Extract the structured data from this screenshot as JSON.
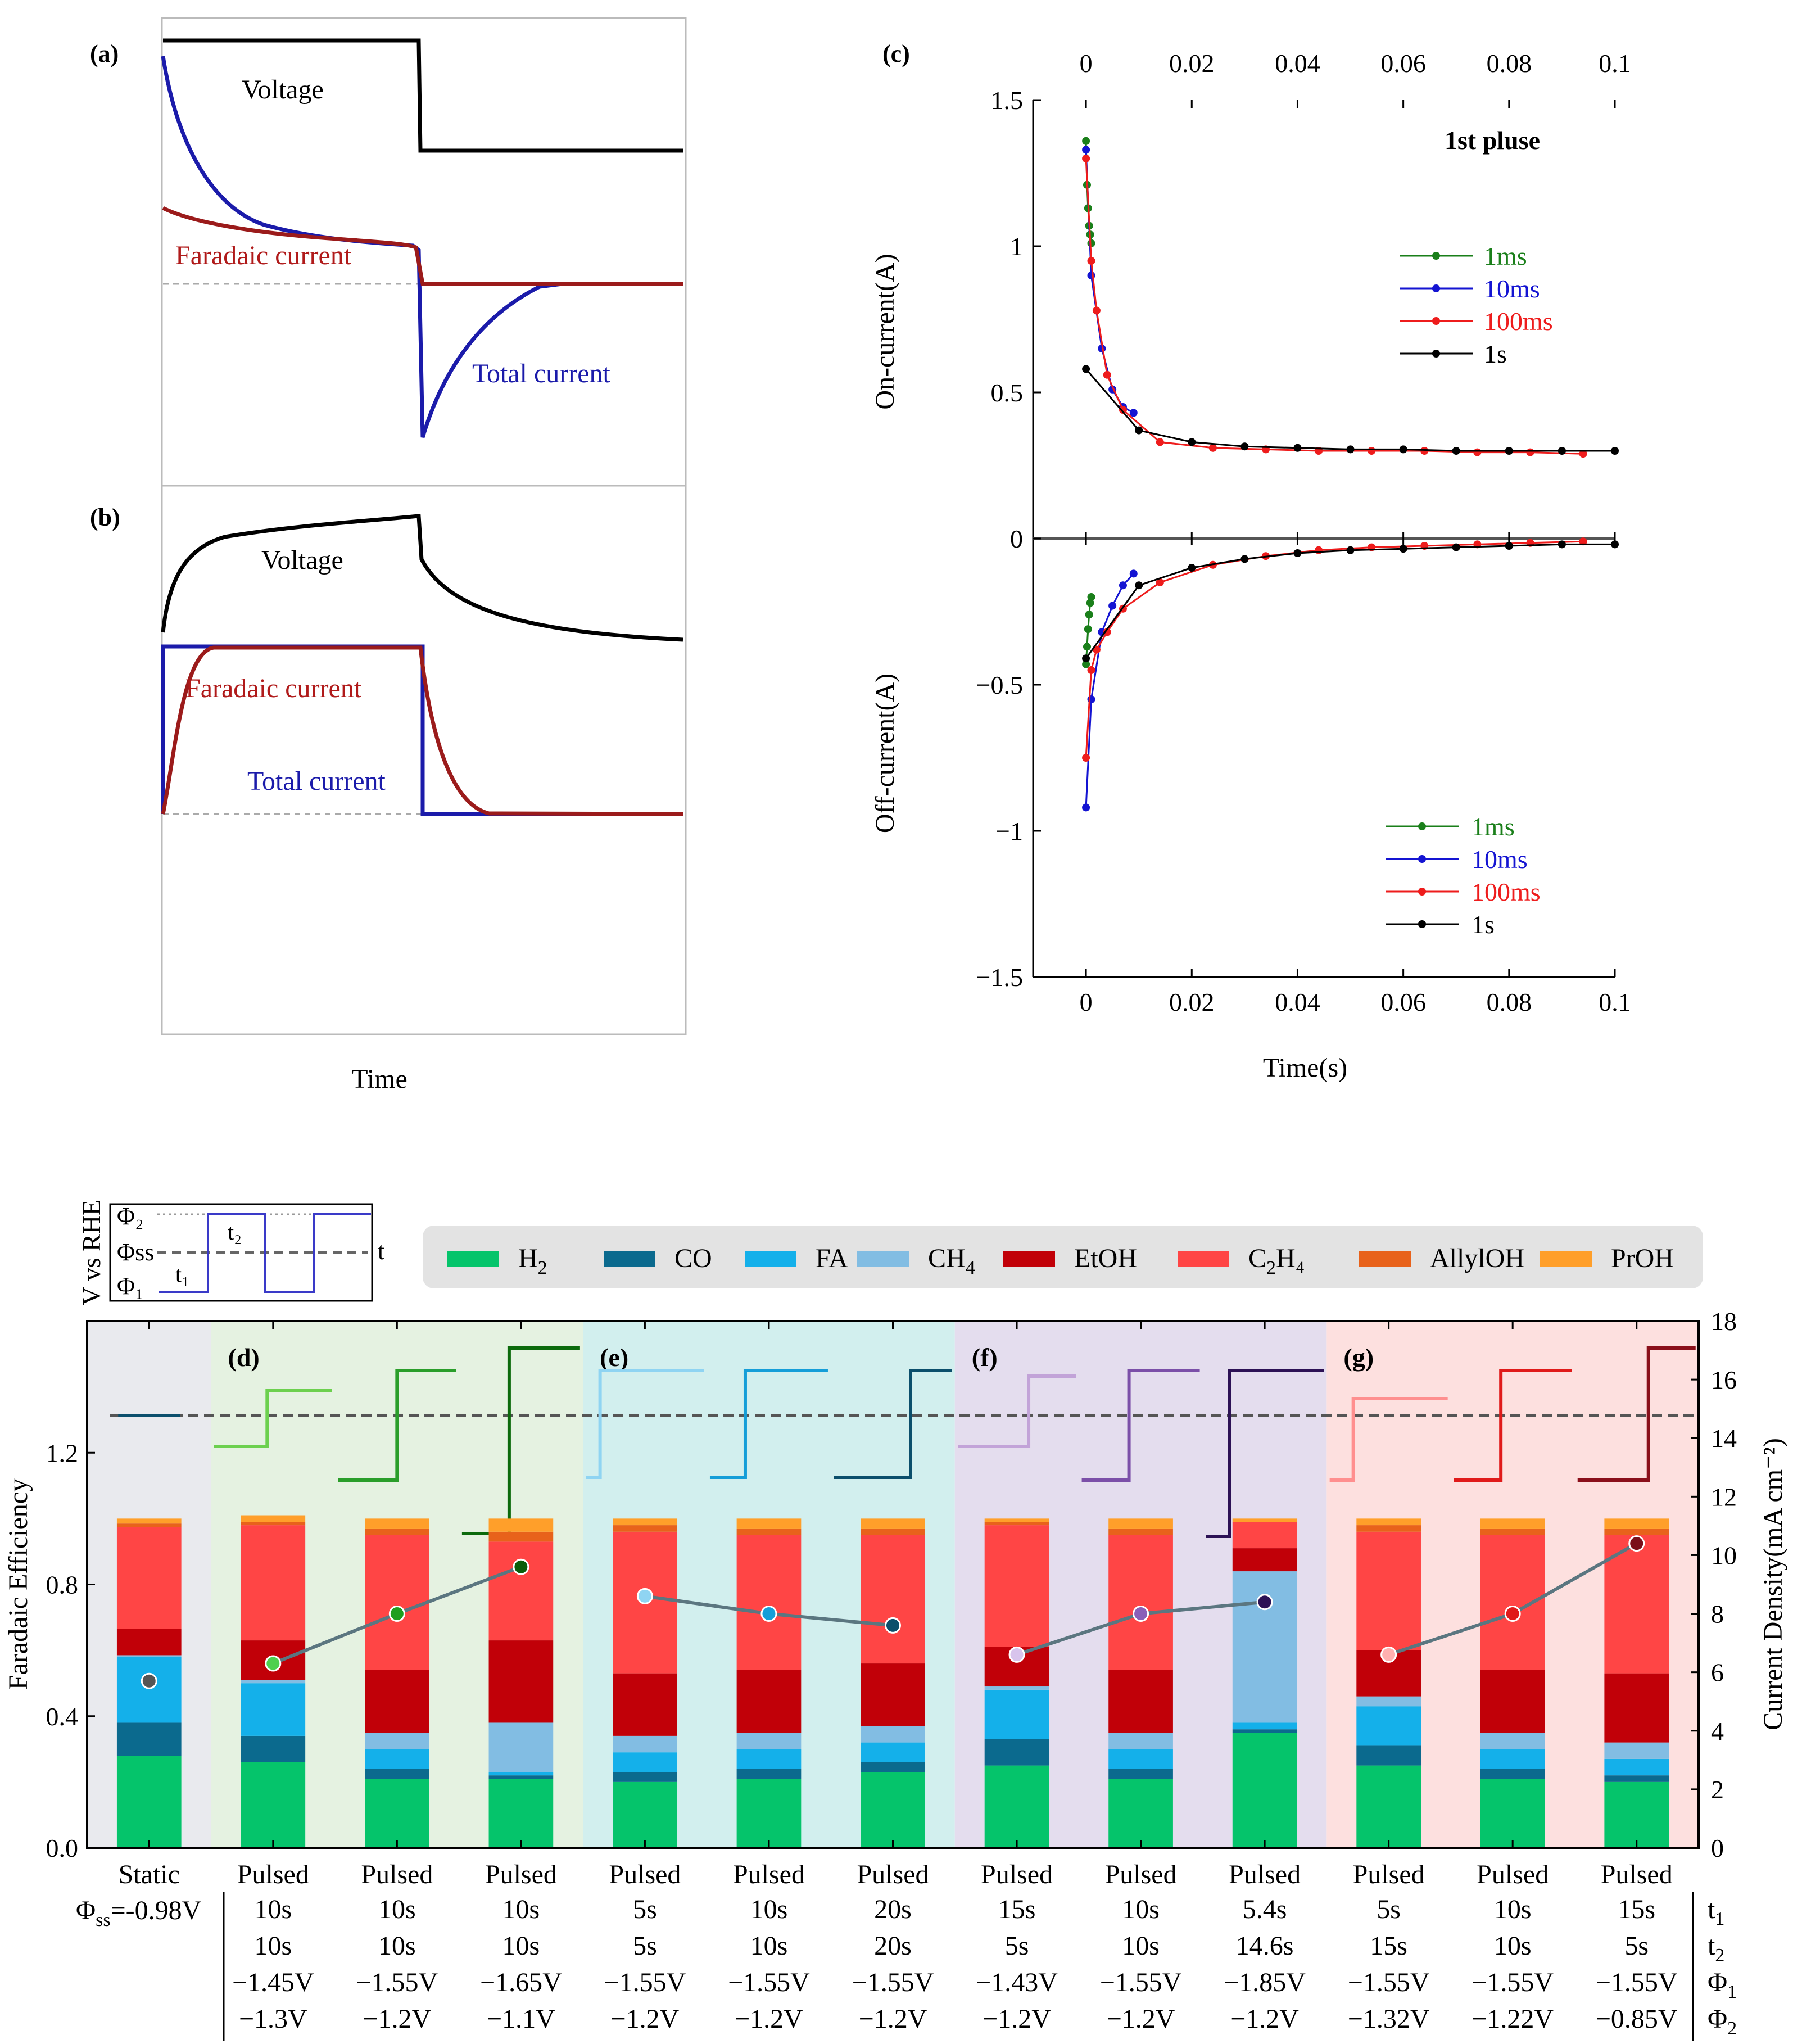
{
  "panels": {
    "a": "(a)",
    "b": "(b)",
    "c": "(c)",
    "d": "(d)",
    "e": "(e)",
    "f": "(f)",
    "g": "(g)"
  },
  "schematic": {
    "a": {
      "voltage": "Voltage",
      "faradaic": "Faradaic current",
      "total": "Total current"
    },
    "b": {
      "voltage": "Voltage",
      "faradaic": "Faradaic current",
      "total": "Total current"
    },
    "xlabel": "Time"
  },
  "colors": {
    "ms1": "#1a7f1a",
    "ms10": "#1414d2",
    "ms100": "#ee1c1c",
    "s1": "#000000",
    "voltage": "#000000",
    "faradaic": "#9b1b1b",
    "total": "#1b1baa",
    "H2": "#05c46b",
    "CO": "#0b6a8e",
    "FA": "#14b0ea",
    "CH4": "#82bde3",
    "EtOH": "#c10008",
    "C2H4": "#ff4545",
    "AllylOH": "#e8621b",
    "PrOH": "#ff9f2a",
    "group_static": "#e9eaee",
    "group_d": "#e5f2e1",
    "group_e": "#d2efee",
    "group_f": "#e4ddee",
    "group_g": "#fde0df"
  },
  "chart_data": [
    {
      "type": "line",
      "title": "1st pluse",
      "xlabel": "Time(s)",
      "ylabel_top": "On-current(A)",
      "ylabel_bottom": "Off-current(A)",
      "xlim": [
        -0.01,
        0.1
      ],
      "ylim": [
        -1.5,
        1.5
      ],
      "x_ticks": [
        "0",
        "0.02",
        "0.04",
        "0.06",
        "0.08",
        "0.1"
      ],
      "y_ticks": [
        "1.5",
        "1",
        "0.5",
        "0",
        "−0.5",
        "−1",
        "−1.5"
      ],
      "legend": [
        "1ms",
        "10ms",
        "100ms",
        "1s"
      ],
      "series_on": [
        {
          "name": "1ms",
          "x": [
            0,
            0.0002,
            0.0004,
            0.0006,
            0.0008,
            0.001
          ],
          "y": [
            1.36,
            1.21,
            1.13,
            1.07,
            1.04,
            1.01
          ]
        },
        {
          "name": "10ms",
          "x": [
            0,
            0.001,
            0.003,
            0.005,
            0.007,
            0.009
          ],
          "y": [
            1.33,
            0.9,
            0.65,
            0.51,
            0.45,
            0.43
          ]
        },
        {
          "name": "100ms",
          "x": [
            0,
            0.001,
            0.002,
            0.004,
            0.007,
            0.014,
            0.024,
            0.034,
            0.044,
            0.054,
            0.064,
            0.074,
            0.084,
            0.094
          ],
          "y": [
            1.3,
            0.95,
            0.78,
            0.56,
            0.44,
            0.33,
            0.31,
            0.305,
            0.3,
            0.3,
            0.3,
            0.295,
            0.295,
            0.29
          ]
        },
        {
          "name": "1s",
          "x": [
            0,
            0.01,
            0.02,
            0.03,
            0.04,
            0.05,
            0.06,
            0.07,
            0.08,
            0.09,
            0.1
          ],
          "y": [
            0.58,
            0.37,
            0.33,
            0.315,
            0.31,
            0.305,
            0.305,
            0.3,
            0.3,
            0.3,
            0.3
          ]
        }
      ],
      "series_off": [
        {
          "name": "1ms",
          "x": [
            0,
            0.0002,
            0.0004,
            0.0006,
            0.0008,
            0.001
          ],
          "y": [
            -0.43,
            -0.37,
            -0.31,
            -0.26,
            -0.22,
            -0.2
          ]
        },
        {
          "name": "10ms",
          "x": [
            0,
            0.001,
            0.003,
            0.005,
            0.007,
            0.009
          ],
          "y": [
            -0.92,
            -0.55,
            -0.32,
            -0.23,
            -0.16,
            -0.12
          ]
        },
        {
          "name": "100ms",
          "x": [
            0,
            0.001,
            0.002,
            0.004,
            0.007,
            0.014,
            0.024,
            0.034,
            0.044,
            0.054,
            0.064,
            0.074,
            0.084,
            0.094
          ],
          "y": [
            -0.75,
            -0.45,
            -0.38,
            -0.32,
            -0.24,
            -0.15,
            -0.09,
            -0.06,
            -0.04,
            -0.03,
            -0.025,
            -0.02,
            -0.015,
            -0.01
          ]
        },
        {
          "name": "1s",
          "x": [
            0,
            0.01,
            0.02,
            0.03,
            0.04,
            0.05,
            0.06,
            0.07,
            0.08,
            0.09,
            0.1
          ],
          "y": [
            -0.41,
            -0.16,
            -0.1,
            -0.07,
            -0.05,
            -0.04,
            -0.035,
            -0.03,
            -0.025,
            -0.02,
            -0.02
          ]
        }
      ]
    },
    {
      "type": "bar",
      "stacked": true,
      "ylabel_left": "Faradaic Efficiency",
      "ylabel_right": "Current Density(mA cm⁻²)",
      "ylim_left": [
        0,
        1.6
      ],
      "ylim_right": [
        0,
        18
      ],
      "left_ticks": [
        "0.0",
        "0.4",
        "0.8",
        "1.2"
      ],
      "right_ticks": [
        "0",
        "2",
        "4",
        "6",
        "8",
        "10",
        "12",
        "14",
        "16",
        "18"
      ],
      "legend": [
        {
          "key": "H2",
          "label": "H",
          "sub": "2",
          "after": ""
        },
        {
          "key": "CO",
          "label": "CO",
          "sub": "",
          "after": ""
        },
        {
          "key": "FA",
          "label": "FA",
          "sub": "",
          "after": ""
        },
        {
          "key": "CH4",
          "label": "CH",
          "sub": "4",
          "after": ""
        },
        {
          "key": "EtOH",
          "label": "EtOH",
          "sub": "",
          "after": ""
        },
        {
          "key": "C2H4",
          "label": "C",
          "sub": "2",
          "after": "H₄"
        },
        {
          "key": "AllylOH",
          "label": "AllylOH",
          "sub": "",
          "after": ""
        },
        {
          "key": "PrOH",
          "label": "PrOH",
          "sub": "",
          "after": ""
        }
      ],
      "stack_order": [
        "H2",
        "CO",
        "FA",
        "CH4",
        "EtOH",
        "C2H4",
        "AllylOH",
        "PrOH"
      ],
      "bars": [
        {
          "mode": "Static",
          "values": [
            0.28,
            0.1,
            0.2,
            0.005,
            0.08,
            0.31,
            0.01,
            0.015
          ],
          "current_density": 5.7
        },
        {
          "mode": "Pulsed",
          "values": [
            0.26,
            0.08,
            0.16,
            0.01,
            0.12,
            0.35,
            0.01,
            0.02
          ],
          "current_density": 6.3
        },
        {
          "mode": "Pulsed",
          "values": [
            0.21,
            0.03,
            0.06,
            0.05,
            0.19,
            0.41,
            0.02,
            0.03
          ],
          "current_density": 8.0
        },
        {
          "mode": "Pulsed",
          "values": [
            0.21,
            0.01,
            0.01,
            0.15,
            0.25,
            0.3,
            0.03,
            0.04
          ],
          "current_density": 9.6
        },
        {
          "mode": "Pulsed",
          "values": [
            0.2,
            0.03,
            0.06,
            0.05,
            0.19,
            0.43,
            0.02,
            0.02
          ],
          "current_density": 8.6
        },
        {
          "mode": "Pulsed",
          "values": [
            0.21,
            0.03,
            0.06,
            0.05,
            0.19,
            0.41,
            0.02,
            0.03
          ],
          "current_density": 8.0
        },
        {
          "mode": "Pulsed",
          "values": [
            0.23,
            0.03,
            0.06,
            0.05,
            0.19,
            0.39,
            0.02,
            0.03
          ],
          "current_density": 7.6
        },
        {
          "mode": "Pulsed",
          "values": [
            0.25,
            0.08,
            0.15,
            0.01,
            0.12,
            0.37,
            0.01,
            0.01
          ],
          "current_density": 6.6
        },
        {
          "mode": "Pulsed",
          "values": [
            0.21,
            0.03,
            0.06,
            0.05,
            0.19,
            0.41,
            0.02,
            0.03
          ],
          "current_density": 8.0
        },
        {
          "mode": "Pulsed",
          "values": [
            0.35,
            0.01,
            0.02,
            0.46,
            0.07,
            0.08,
            0.0,
            0.01
          ],
          "current_density": 8.4
        },
        {
          "mode": "Pulsed",
          "values": [
            0.25,
            0.06,
            0.12,
            0.03,
            0.14,
            0.36,
            0.02,
            0.02
          ],
          "current_density": 6.6
        },
        {
          "mode": "Pulsed",
          "values": [
            0.21,
            0.03,
            0.06,
            0.05,
            0.19,
            0.41,
            0.02,
            0.03
          ],
          "current_density": 8.0
        },
        {
          "mode": "Pulsed",
          "values": [
            0.2,
            0.02,
            0.05,
            0.05,
            0.21,
            0.42,
            0.02,
            0.03
          ],
          "current_density": 10.4
        }
      ],
      "table": {
        "static_phi": "Φss=-0.98V",
        "static_phi_base": "Φ",
        "static_phi_sub": "ss",
        "static_phi_value": "=-0.98V",
        "row_labels": [
          {
            "base": "t",
            "sub": "1"
          },
          {
            "base": "t",
            "sub": "2"
          },
          {
            "base": "Φ",
            "sub": "1"
          },
          {
            "base": "Φ",
            "sub": "2"
          }
        ],
        "t1": [
          "10s",
          "10s",
          "10s",
          "5s",
          "10s",
          "20s",
          "15s",
          "10s",
          "5.4s",
          "5s",
          "10s",
          "15s"
        ],
        "t2": [
          "10s",
          "10s",
          "10s",
          "5s",
          "10s",
          "20s",
          "5s",
          "10s",
          "14.6s",
          "15s",
          "10s",
          "5s"
        ],
        "phi1": [
          "−1.45V",
          "−1.55V",
          "−1.65V",
          "−1.55V",
          "−1.55V",
          "−1.55V",
          "−1.43V",
          "−1.55V",
          "−1.85V",
          "−1.55V",
          "−1.55V",
          "−1.55V"
        ],
        "phi2": [
          "−1.3V",
          "−1.2V",
          "−1.1V",
          "−1.2V",
          "−1.2V",
          "−1.2V",
          "−1.2V",
          "−1.2V",
          "−1.2V",
          "−1.32V",
          "−1.22V",
          "−0.85V"
        ]
      },
      "inset": {
        "ylabel": "V vs RHE",
        "phi2": "Φ₂",
        "phi_ss": "Φss",
        "phi1": "Φ₁",
        "t1": "t₁",
        "t2": "t₂",
        "t": "t"
      }
    }
  ]
}
